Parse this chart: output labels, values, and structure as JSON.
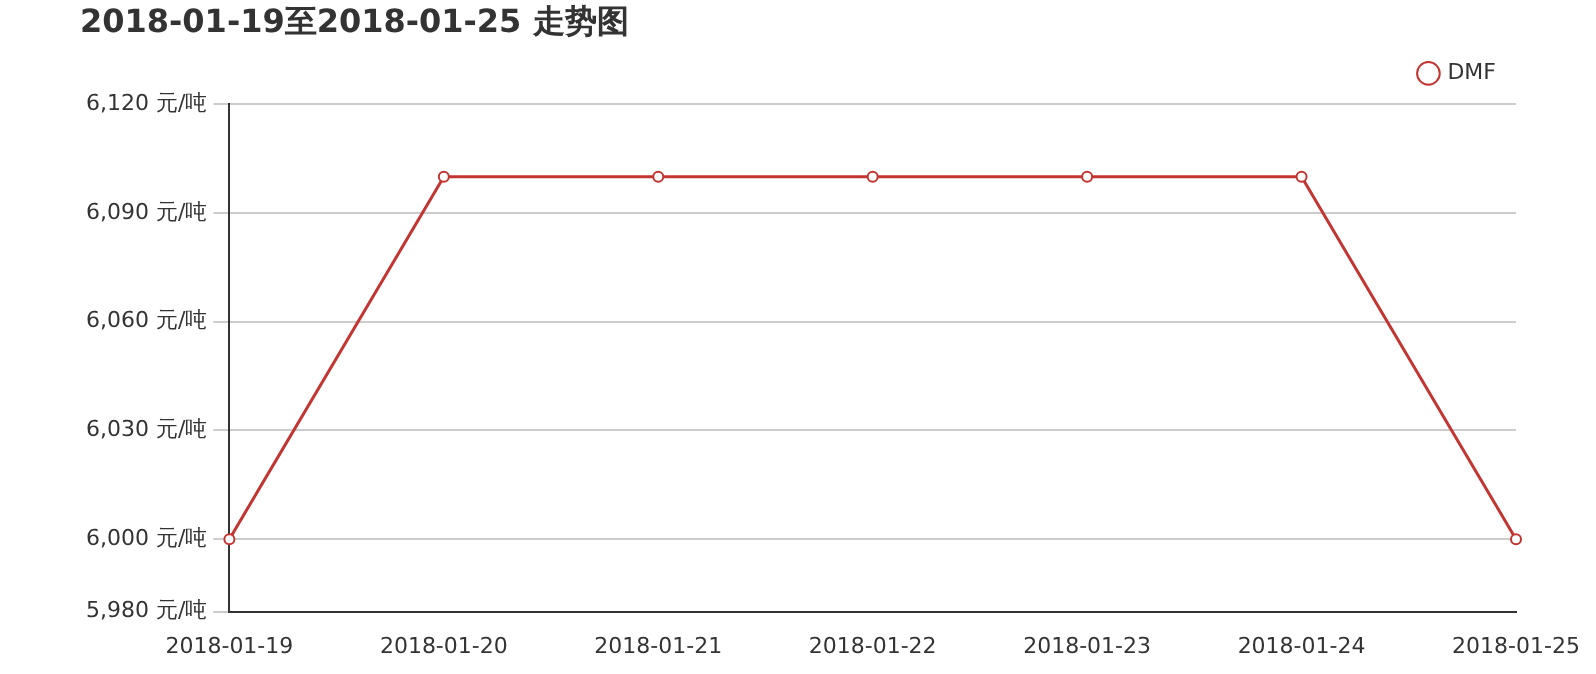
{
  "chart_data": {
    "type": "line",
    "title": "2018-01-19至2018-01-25 走势图",
    "categories": [
      "2018-01-19",
      "2018-01-20",
      "2018-01-21",
      "2018-01-22",
      "2018-01-23",
      "2018-01-24",
      "2018-01-25"
    ],
    "series": [
      {
        "name": "DMF",
        "color": "#c23531",
        "values": [
          6000,
          6100,
          6100,
          6100,
          6100,
          6100,
          6000
        ]
      }
    ],
    "ylim": [
      5980,
      6120
    ],
    "yticks": [
      {
        "value": 5980,
        "label": "5,980 元/吨"
      },
      {
        "value": 6000,
        "label": "6,000 元/吨"
      },
      {
        "value": 6030,
        "label": "6,030 元/吨"
      },
      {
        "value": 6060,
        "label": "6,060 元/吨"
      },
      {
        "value": 6090,
        "label": "6,090 元/吨"
      },
      {
        "value": 6120,
        "label": "6,120 元/吨"
      }
    ],
    "grid": "y",
    "legend": "top right",
    "marker": "circle",
    "line_style": "solid"
  }
}
